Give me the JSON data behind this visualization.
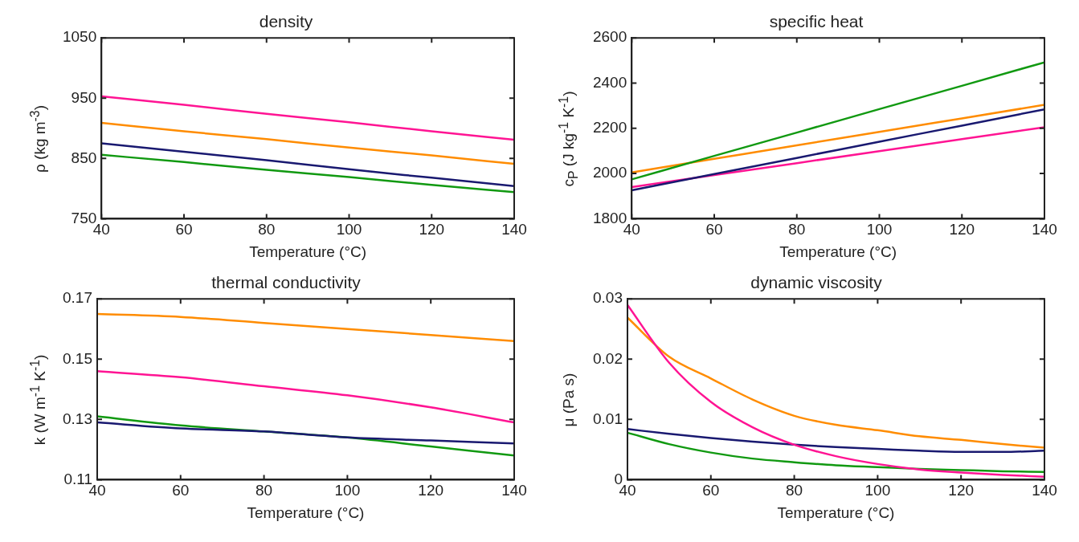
{
  "chart_data": [
    {
      "type": "line",
      "title": "density",
      "xlabel": "Temperature (°C)",
      "ylabel": "ρ (kg m$^{-3}$)",
      "x": [
        40,
        60,
        80,
        100,
        120,
        140
      ],
      "xlim": [
        40,
        140
      ],
      "xticks": [
        40,
        60,
        80,
        100,
        120,
        140
      ],
      "ylim": [
        750,
        1050
      ],
      "yticks": [
        750,
        850,
        950,
        1050
      ],
      "series": [
        {
          "color": "#ff1493",
          "values": [
            953,
            939,
            924,
            910,
            895,
            881
          ]
        },
        {
          "color": "#ff8c00",
          "values": [
            909,
            895,
            882,
            868,
            855,
            841
          ]
        },
        {
          "color": "#191970",
          "values": [
            875,
            861,
            847,
            832,
            818,
            804
          ]
        },
        {
          "color": "#119911",
          "values": [
            856,
            844,
            831,
            819,
            806,
            794
          ]
        }
      ]
    },
    {
      "type": "line",
      "title": "specific heat",
      "xlabel": "Temperature (°C)",
      "ylabel": "c$_{P}$ (J kg$^{-1}$ K$^{-1}$)",
      "x": [
        40,
        60,
        80,
        100,
        120,
        140
      ],
      "xlim": [
        40,
        140
      ],
      "xticks": [
        40,
        60,
        80,
        100,
        120,
        140
      ],
      "ylim": [
        1800,
        2600
      ],
      "yticks": [
        1800,
        2000,
        2200,
        2400,
        2600
      ],
      "series": [
        {
          "color": "#119911",
          "values": [
            1974,
            2078,
            2181,
            2285,
            2388,
            2492
          ]
        },
        {
          "color": "#ff8c00",
          "values": [
            2005,
            2065,
            2125,
            2184,
            2244,
            2304
          ]
        },
        {
          "color": "#191970",
          "values": [
            1926,
            1998,
            2069,
            2141,
            2212,
            2284
          ]
        },
        {
          "color": "#ff1493",
          "values": [
            1940,
            1993,
            2046,
            2099,
            2152,
            2205
          ]
        }
      ]
    },
    {
      "type": "line",
      "title": "thermal conductivity",
      "xlabel": "Temperature (°C)",
      "ylabel": "k (W m$^{-1}$ K$^{-1}$)",
      "x": [
        40,
        60,
        80,
        100,
        120,
        140
      ],
      "xlim": [
        40,
        140
      ],
      "xticks": [
        40,
        60,
        80,
        100,
        120,
        140
      ],
      "ylim": [
        0.11,
        0.17
      ],
      "yticks": [
        0.11,
        0.13,
        0.15,
        0.17
      ],
      "series": [
        {
          "color": "#ff8c00",
          "values": [
            0.165,
            0.164,
            0.162,
            0.16,
            0.158,
            0.156
          ]
        },
        {
          "color": "#ff1493",
          "values": [
            0.146,
            0.144,
            0.141,
            0.138,
            0.134,
            0.129
          ]
        },
        {
          "color": "#191970",
          "values": [
            0.129,
            0.127,
            0.126,
            0.124,
            0.123,
            0.122
          ]
        },
        {
          "color": "#119911",
          "values": [
            0.131,
            0.128,
            0.126,
            0.124,
            0.121,
            0.118
          ]
        }
      ]
    },
    {
      "type": "line",
      "title": "dynamic viscosity",
      "xlabel": "Temperature (°C)",
      "ylabel": "μ (Pa s)",
      "x": [
        40,
        50,
        60,
        70,
        80,
        90,
        100,
        110,
        120,
        130,
        140
      ],
      "xlim": [
        40,
        140
      ],
      "xticks": [
        40,
        60,
        80,
        100,
        120,
        140
      ],
      "ylim": [
        0,
        0.03
      ],
      "yticks": [
        0,
        0.01,
        0.02,
        0.03
      ],
      "series": [
        {
          "color": "#ff1493",
          "values": [
            0.029,
            0.0194,
            0.0129,
            0.0087,
            0.0058,
            0.0039,
            0.0026,
            0.0017,
            0.0012,
            0.0008,
            0.0005
          ]
        },
        {
          "color": "#ff8c00",
          "values": [
            0.0269,
            0.0204,
            0.0168,
            0.0133,
            0.0106,
            0.0091,
            0.0082,
            0.0072,
            0.0066,
            0.0059,
            0.0053
          ]
        },
        {
          "color": "#191970",
          "values": [
            0.0084,
            0.0076,
            0.0069,
            0.0063,
            0.0058,
            0.0054,
            0.0051,
            0.0048,
            0.0046,
            0.0046,
            0.0048
          ]
        },
        {
          "color": "#119911",
          "values": [
            0.0078,
            0.0059,
            0.0045,
            0.0035,
            0.0029,
            0.0024,
            0.0021,
            0.0018,
            0.0016,
            0.0014,
            0.0013
          ]
        }
      ]
    }
  ]
}
